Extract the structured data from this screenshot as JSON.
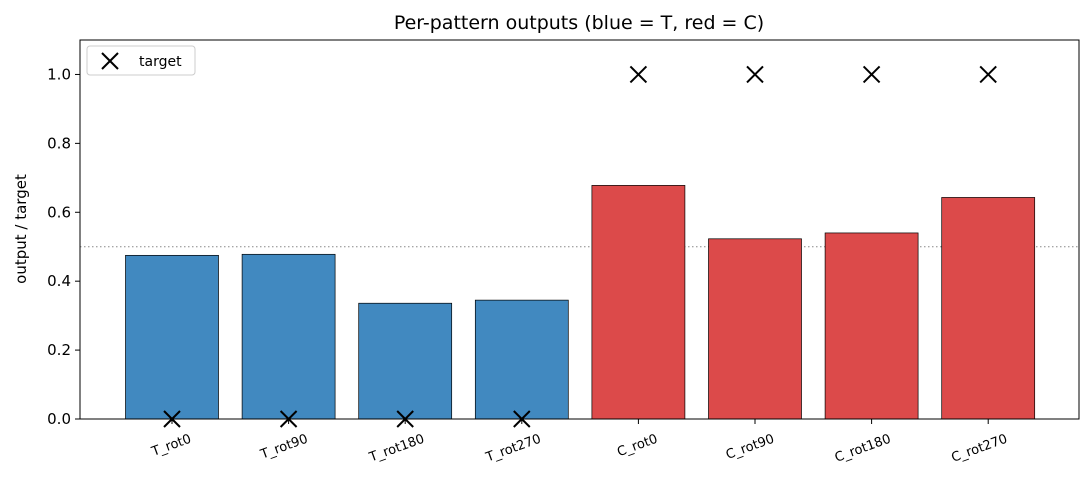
{
  "chart_data": {
    "type": "bar",
    "title": "Per-pattern outputs  (blue = T, red = C)",
    "xlabel": "",
    "ylabel": "output / target",
    "categories": [
      "T_rot0",
      "T_rot90",
      "T_rot180",
      "T_rot270",
      "C_rot0",
      "C_rot90",
      "C_rot180",
      "C_rot270"
    ],
    "values": [
      0.475,
      0.478,
      0.336,
      0.345,
      0.678,
      0.523,
      0.54,
      0.643
    ],
    "bar_colors": [
      "#4189c0",
      "#4189c0",
      "#4189c0",
      "#4189c0",
      "#dc4a4a",
      "#dc4a4a",
      "#dc4a4a",
      "#dc4a4a"
    ],
    "targets": [
      0,
      0,
      0,
      0,
      1,
      1,
      1,
      1
    ],
    "target_marker": "x",
    "reference_line": 0.5,
    "ylim": [
      0,
      1.1
    ],
    "yticks": [
      "0.0",
      "0.2",
      "0.4",
      "0.6",
      "0.8",
      "1.0"
    ],
    "grid": false,
    "legend": {
      "placement": "top-left",
      "entries": [
        "target"
      ]
    }
  }
}
